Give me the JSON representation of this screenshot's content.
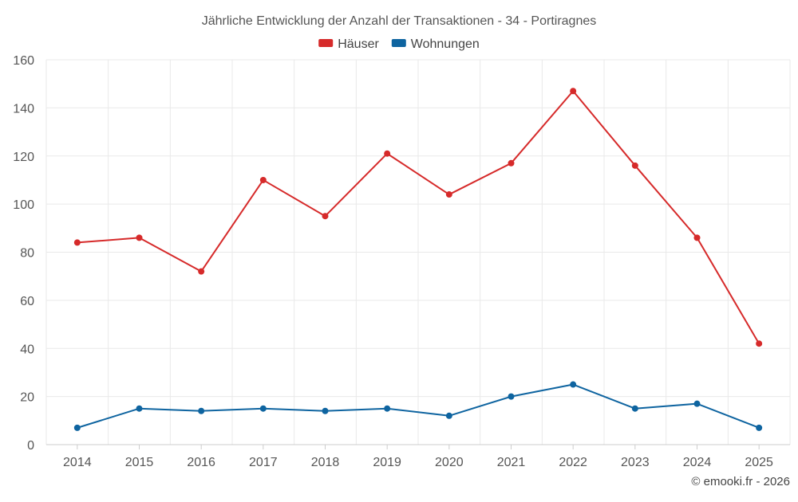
{
  "chart_data": {
    "type": "line",
    "title": "Jährliche Entwicklung der Anzahl der Transaktionen - 34 - Portiragnes",
    "xlabel": "",
    "ylabel": "",
    "x": [
      "2014",
      "2015",
      "2016",
      "2017",
      "2018",
      "2019",
      "2020",
      "2021",
      "2022",
      "2023",
      "2024",
      "2025"
    ],
    "ylim": [
      0,
      160
    ],
    "yticks": [
      0,
      20,
      40,
      60,
      80,
      100,
      120,
      140,
      160
    ],
    "grid": true,
    "legend_position": "top-center",
    "series": [
      {
        "name": "Häuser",
        "color": "#d62a2a",
        "values": [
          84,
          86,
          72,
          110,
          95,
          121,
          104,
          117,
          147,
          116,
          86,
          42
        ]
      },
      {
        "name": "Wohnungen",
        "color": "#0e64a0",
        "values": [
          7,
          15,
          14,
          15,
          14,
          15,
          12,
          20,
          25,
          15,
          17,
          7
        ]
      }
    ]
  },
  "credit": "© emooki.fr - 2026"
}
